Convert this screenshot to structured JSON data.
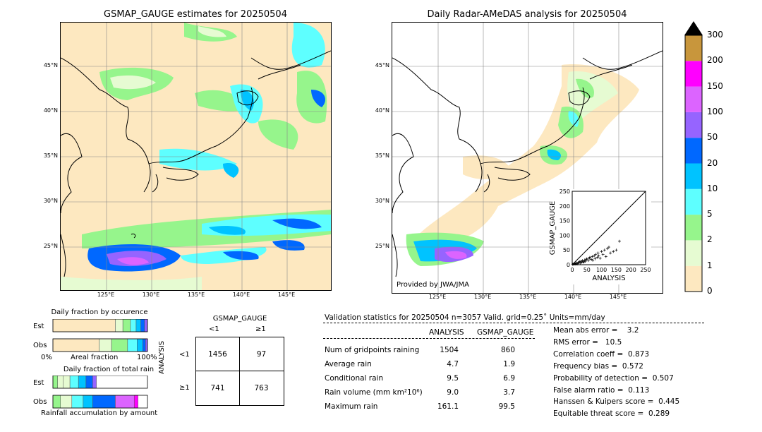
{
  "left_map": {
    "title": "GSMAP_GAUGE estimates for 20250504"
  },
  "right_map": {
    "title": "Daily Radar-AMeDAS analysis for 20250504",
    "credit": "Provided by JWA/JMA"
  },
  "lat_labels": [
    "45°N",
    "40°N",
    "35°N",
    "30°N",
    "25°N"
  ],
  "lon_labels": [
    "125°E",
    "130°E",
    "135°E",
    "140°E",
    "145°E"
  ],
  "colorbar": {
    "ticks": [
      "0",
      "1",
      "2",
      "5",
      "10",
      "20",
      "50",
      "100",
      "150",
      "200",
      "300"
    ],
    "colors": [
      "#fde8c0",
      "#e6fbd2",
      "#96f58c",
      "#5effff",
      "#00c3ff",
      "#0068ff",
      "#9664ff",
      "#dc64ff",
      "#ff00ff",
      "#c8963c"
    ],
    "extend_color": "#000000"
  },
  "scatter": {
    "ylabel": "GSMAP_GAUGE",
    "xlabel": "ANALYSIS",
    "ticks": [
      "0",
      "50",
      "100",
      "150",
      "200",
      "250"
    ],
    "range": [
      0,
      250
    ]
  },
  "chart_data": {
    "type": "scatter",
    "xlabel": "ANALYSIS",
    "ylabel": "GSMAP_GAUGE",
    "xlim": [
      0,
      250
    ],
    "ylim": [
      0,
      250
    ],
    "x": [
      2,
      5,
      8,
      10,
      12,
      15,
      18,
      20,
      22,
      25,
      28,
      30,
      33,
      35,
      38,
      40,
      42,
      45,
      48,
      50,
      55,
      58,
      60,
      65,
      68,
      70,
      75,
      78,
      80,
      85,
      88,
      90,
      95,
      100,
      105,
      110,
      115,
      120,
      125,
      130,
      140,
      150,
      161
    ],
    "y": [
      1,
      2,
      3,
      4,
      2,
      6,
      3,
      8,
      5,
      10,
      6,
      12,
      8,
      14,
      10,
      9,
      16,
      12,
      18,
      20,
      14,
      22,
      25,
      18,
      28,
      15,
      30,
      20,
      35,
      25,
      40,
      30,
      22,
      45,
      35,
      50,
      28,
      55,
      60,
      40,
      45,
      50,
      80
    ]
  },
  "occurrence": {
    "title": "Daily fraction by occurence",
    "rows": [
      {
        "label": "Est",
        "segments": [
          {
            "w": 0.66,
            "c": "#fde8c0"
          },
          {
            "w": 0.08,
            "c": "#e6fbd2"
          },
          {
            "w": 0.08,
            "c": "#96f58c"
          },
          {
            "w": 0.06,
            "c": "#5effff"
          },
          {
            "w": 0.05,
            "c": "#00c3ff"
          },
          {
            "w": 0.04,
            "c": "#0068ff"
          },
          {
            "w": 0.03,
            "c": "#9664ff"
          }
        ]
      },
      {
        "label": "Obs",
        "segments": [
          {
            "w": 0.49,
            "c": "#fde8c0"
          },
          {
            "w": 0.13,
            "c": "#e6fbd2"
          },
          {
            "w": 0.17,
            "c": "#96f58c"
          },
          {
            "w": 0.1,
            "c": "#5effff"
          },
          {
            "w": 0.06,
            "c": "#00c3ff"
          },
          {
            "w": 0.03,
            "c": "#0068ff"
          },
          {
            "w": 0.02,
            "c": "#9664ff"
          }
        ]
      }
    ],
    "axis_left": "0%",
    "axis_mid": "Areal fraction",
    "axis_right": "100%"
  },
  "total_rain": {
    "title": "Daily fraction of total rain",
    "rows": [
      {
        "label": "Est",
        "segments": [
          {
            "w": 0.05,
            "c": "#96f58c"
          },
          {
            "w": 0.06,
            "c": "#e6fbd2"
          },
          {
            "w": 0.07,
            "c": "#e6fbd2"
          },
          {
            "w": 0.09,
            "c": "#5effff"
          },
          {
            "w": 0.08,
            "c": "#00c3ff"
          },
          {
            "w": 0.07,
            "c": "#0068ff"
          },
          {
            "w": 0.04,
            "c": "#9664ff"
          }
        ]
      },
      {
        "label": "Obs",
        "segments": [
          {
            "w": 0.08,
            "c": "#96f58c"
          },
          {
            "w": 0.12,
            "c": "#e6fbd2"
          },
          {
            "w": 0.12,
            "c": "#5effff"
          },
          {
            "w": 0.1,
            "c": "#00c3ff"
          },
          {
            "w": 0.24,
            "c": "#0068ff"
          },
          {
            "w": 0.2,
            "c": "#dc64ff"
          },
          {
            "w": 0.04,
            "c": "#ff00ff"
          }
        ]
      }
    ],
    "axis_label": "Rainfall accumulation by amount"
  },
  "contingency": {
    "col_header": "GSMAP_GAUGE",
    "row_header": "ANALYSIS",
    "col_labels": [
      "<1",
      "≥1"
    ],
    "row_labels": [
      "<1",
      "≥1"
    ],
    "cells": [
      [
        "1456",
        "97"
      ],
      [
        "741",
        "763"
      ]
    ]
  },
  "validation": {
    "header": "Validation statistics for 20250504  n=3057 Valid. grid=0.25˚ Units=mm/day",
    "col_analysis": "ANALYSIS",
    "col_gsmap": "GSMAP_GAUGE",
    "rows": [
      {
        "label": "Num of gridpoints raining",
        "a": "1504",
        "g": "860"
      },
      {
        "label": "Average rain",
        "a": "4.7",
        "g": "1.9"
      },
      {
        "label": "Conditional rain",
        "a": "9.5",
        "g": "6.9"
      },
      {
        "label": "Rain volume (mm km²10⁶)",
        "a": "9.0",
        "g": "3.7"
      },
      {
        "label": "Maximum rain",
        "a": "161.1",
        "g": "99.5"
      }
    ],
    "scores": [
      "Mean abs error =    3.2",
      "RMS error =   10.5",
      "Correlation coeff =  0.873",
      "Frequency bias =  0.572",
      "Probability of detection =  0.507",
      "False alarm ratio =  0.113",
      "Hanssen & Kuipers score =  0.445",
      "Equitable threat score =  0.289"
    ]
  }
}
